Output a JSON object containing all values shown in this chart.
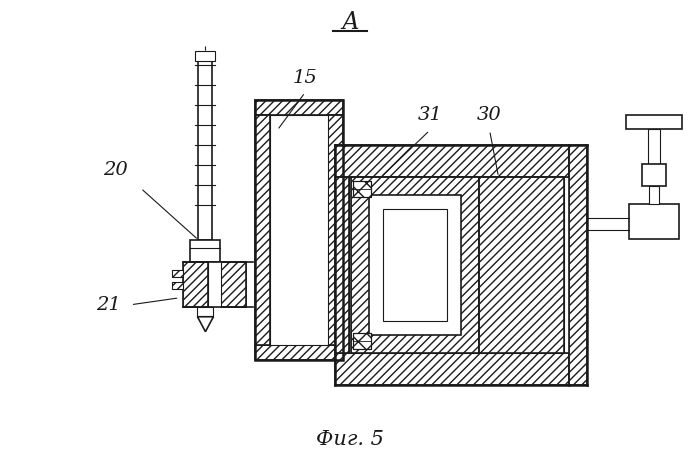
{
  "bg_color": "#ffffff",
  "lc": "#1a1a1a",
  "title": "А",
  "caption": "Фиг. 5",
  "figsize": [
    6.99,
    4.63
  ],
  "dpi": 100
}
